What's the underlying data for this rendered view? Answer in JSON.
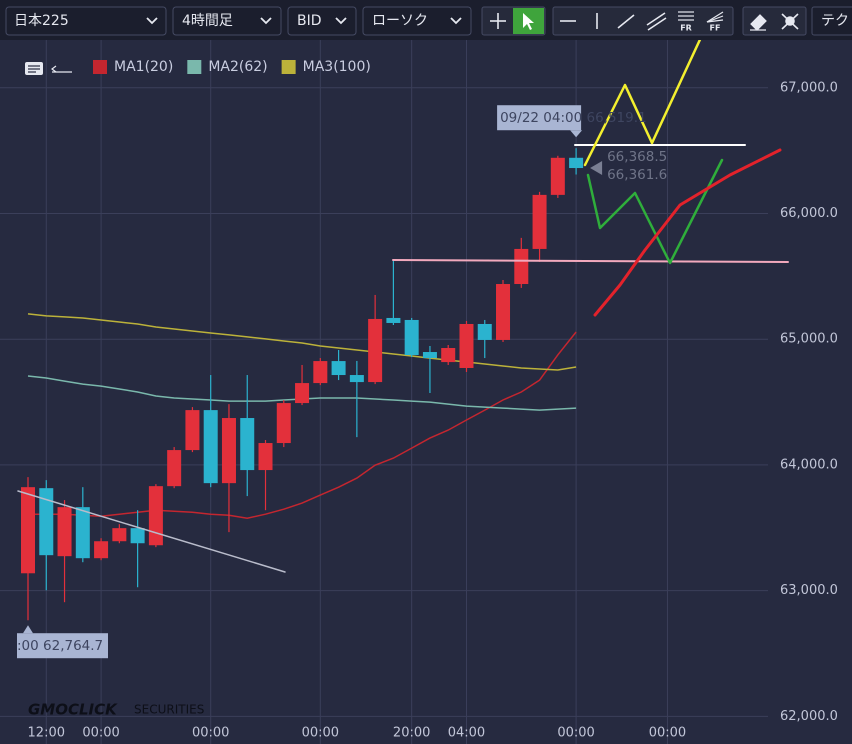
{
  "toolbar": {
    "symbol": "日本225",
    "timeframe": "4時間足",
    "price_type": "BID",
    "chart_style": "ローソク",
    "tool_labels": [
      "FR",
      "FF"
    ],
    "tab": "テク"
  },
  "chart_data": {
    "type": "candlestick",
    "categories": [
      null,
      "12:00",
      null,
      null,
      "00:00",
      null,
      null,
      null,
      null,
      null,
      "00:00",
      null,
      null,
      null,
      null,
      null,
      "00:00",
      null,
      null,
      null,
      null,
      "20:00",
      null,
      null,
      "04:00",
      null,
      null,
      null,
      null,
      null,
      "00:00",
      null,
      null,
      null,
      null,
      "00:00",
      null,
      null,
      null,
      null,
      null
    ],
    "open": [
      63138,
      63815,
      63274,
      63664,
      63258,
      63393,
      63497,
      63361,
      63831,
      64118,
      64436,
      63855,
      64373,
      63959,
      64174,
      64492,
      64651,
      64826,
      64715,
      64659,
      65169,
      65153,
      64898,
      64818,
      64771,
      65121,
      64994,
      65439,
      65718,
      66148,
      66443,
      null,
      null,
      null,
      null,
      null,
      null,
      null,
      null,
      null,
      null
    ],
    "high": [
      63903,
      63879,
      63720,
      63823,
      63417,
      63529,
      63640,
      63847,
      64142,
      64460,
      64715,
      64484,
      64715,
      64198,
      64516,
      64795,
      64850,
      64914,
      64827,
      65352,
      65631,
      65169,
      64946,
      64954,
      65145,
      65153,
      65471,
      65806,
      66172,
      66459,
      66519.1,
      null,
      null,
      null,
      null,
      null,
      null,
      null,
      null,
      null,
      null
    ],
    "low": [
      62764.7,
      63003,
      62908,
      63226,
      63242,
      63377,
      63027,
      63346,
      63815,
      64102,
      63823,
      63465,
      63752,
      63640,
      64142,
      64476,
      64635,
      64675,
      64221,
      64643,
      65113,
      64858,
      64572,
      64795,
      64739,
      64850,
      64978,
      65408,
      65615,
      66124,
      66310,
      null,
      null,
      null,
      null,
      null,
      null,
      null,
      null,
      null,
      null
    ],
    "close": [
      63823,
      63282,
      63664,
      63258,
      63393,
      63497,
      63377,
      63831,
      64118,
      64436,
      63855,
      64373,
      63959,
      64174,
      64492,
      64651,
      64826,
      64715,
      64659,
      65161,
      65129,
      64874,
      64850,
      64930,
      65121,
      64994,
      65439,
      65718,
      66148,
      66443,
      66361.6,
      null,
      null,
      null,
      null,
      null,
      null,
      null,
      null,
      null,
      null
    ],
    "up_color": "#e3303b",
    "down_color": "#2bb3cf",
    "moving_averages": [
      {
        "name": "MA1(20)",
        "color": "#c4262f",
        "values": [
          63608,
          63608,
          63608,
          63600,
          63592,
          63608,
          63624,
          63640,
          63632,
          63624,
          63608,
          63600,
          63576,
          63608,
          63648,
          63696,
          63760,
          63823,
          63895,
          63998,
          64054,
          64134,
          64213,
          64277,
          64357,
          64436,
          64516,
          64580,
          64675,
          64875,
          65057,
          null,
          null,
          null,
          null,
          null,
          null,
          null,
          null,
          null,
          null
        ]
      },
      {
        "name": "MA2(62)",
        "color": "#7ab8ac",
        "values": [
          64707,
          64691,
          64667,
          64643,
          64627,
          64604,
          64580,
          64548,
          64532,
          64524,
          64516,
          64508,
          64508,
          64508,
          64516,
          64524,
          64532,
          64532,
          64532,
          64524,
          64516,
          64508,
          64500,
          64484,
          64468,
          64460,
          64452,
          64444,
          64436,
          64444,
          64452,
          null,
          null,
          null,
          null,
          null,
          null,
          null,
          null,
          null,
          null
        ]
      },
      {
        "name": "MA3(100)",
        "color": "#bcb23a",
        "values": [
          65201,
          65185,
          65177,
          65169,
          65153,
          65137,
          65121,
          65097,
          65081,
          65065,
          65049,
          65034,
          65018,
          65002,
          64986,
          64970,
          64946,
          64930,
          64914,
          64898,
          64882,
          64866,
          64850,
          64834,
          64819,
          64803,
          64787,
          64771,
          64763,
          64755,
          64779,
          null,
          null,
          null,
          null,
          null,
          null,
          null,
          null,
          null,
          null
        ]
      }
    ],
    "ylim": [
      61780,
      67380
    ],
    "yticks": [
      {
        "value": 62000,
        "label": "62,000.0"
      },
      {
        "value": 63000,
        "label": "63,000.0"
      },
      {
        "value": 64000,
        "label": "64,000.0"
      },
      {
        "value": 65000,
        "label": "65,000.0"
      },
      {
        "value": 66000,
        "label": "66,000.0"
      },
      {
        "value": 67000,
        "label": "67,000.0"
      }
    ],
    "grid": true,
    "annotations": {
      "high_marker": "09/22 04:00 66,519.1",
      "ask": "66,368.5",
      "bid": "66,361.6",
      "low_marker": ":00 62,764.7"
    },
    "logo": {
      "main": "GMOCLICK",
      "sub": "SECURITIES"
    }
  }
}
